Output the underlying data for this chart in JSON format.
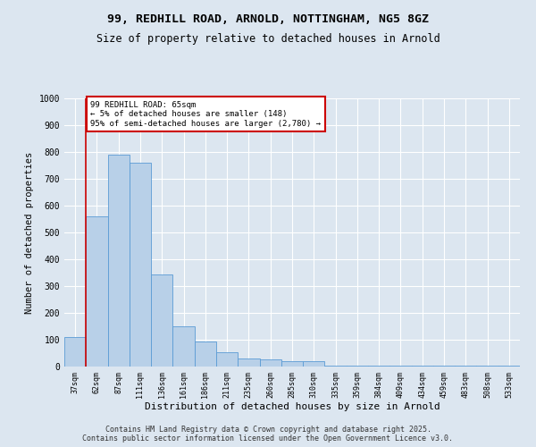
{
  "title_line1": "99, REDHILL ROAD, ARNOLD, NOTTINGHAM, NG5 8GZ",
  "title_line2": "Size of property relative to detached houses in Arnold",
  "xlabel": "Distribution of detached houses by size in Arnold",
  "ylabel": "Number of detached properties",
  "categories": [
    "37sqm",
    "62sqm",
    "87sqm",
    "111sqm",
    "136sqm",
    "161sqm",
    "186sqm",
    "211sqm",
    "235sqm",
    "260sqm",
    "285sqm",
    "310sqm",
    "335sqm",
    "359sqm",
    "384sqm",
    "409sqm",
    "434sqm",
    "459sqm",
    "483sqm",
    "508sqm",
    "533sqm"
  ],
  "values": [
    110,
    560,
    790,
    760,
    345,
    150,
    95,
    55,
    30,
    27,
    20,
    20,
    5,
    5,
    5,
    5,
    5,
    5,
    5,
    5,
    5
  ],
  "bar_color": "#b8d0e8",
  "bar_edge_color": "#5b9bd5",
  "background_color": "#dce6f0",
  "fig_background_color": "#dce6f0",
  "annotation_box_color": "#cc0000",
  "annotation_text": "99 REDHILL ROAD: 65sqm\n← 5% of detached houses are smaller (148)\n95% of semi-detached houses are larger (2,780) →",
  "vline_x": 0.5,
  "vline_color": "#cc0000",
  "ylim": [
    0,
    1000
  ],
  "yticks": [
    0,
    100,
    200,
    300,
    400,
    500,
    600,
    700,
    800,
    900,
    1000
  ],
  "footer_line1": "Contains HM Land Registry data © Crown copyright and database right 2025.",
  "footer_line2": "Contains public sector information licensed under the Open Government Licence v3.0."
}
